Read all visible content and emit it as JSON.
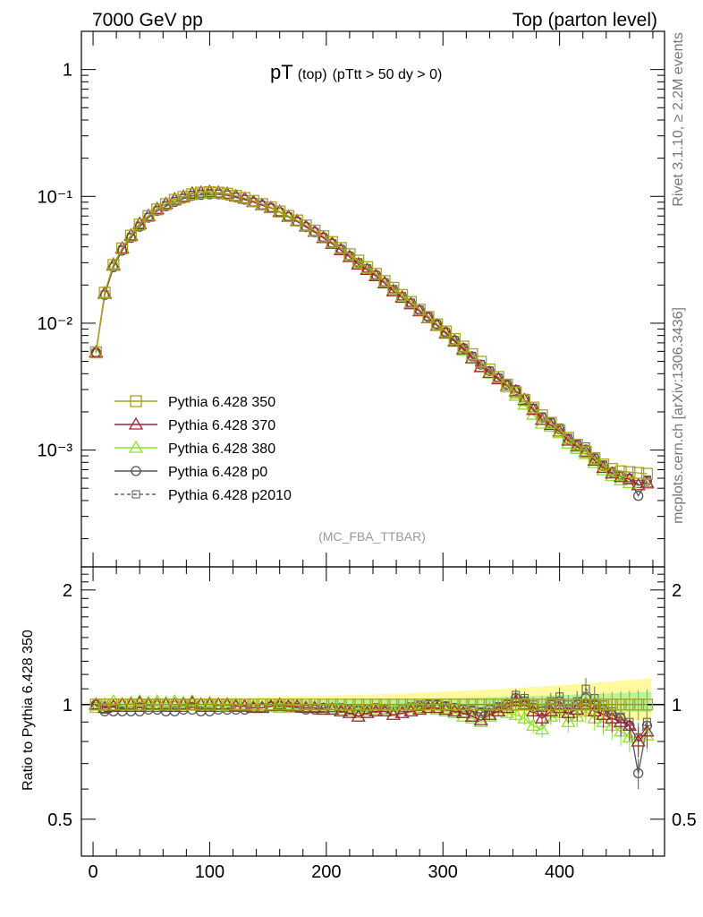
{
  "header": {
    "left": "7000 GeV pp",
    "right": "Top (parton level)"
  },
  "side_labels": {
    "rivet": "Rivet 3.1.10, ≥ 2.2M events",
    "mcplots": "mcplots.cern.ch [arXiv:1306.3436]"
  },
  "plot_title": {
    "main": "pT",
    "sub1": "(top)",
    "sub2": "(pTtt > 50 dy > 0)"
  },
  "watermark": "(MC_FBA_TTBAR)",
  "ratio_ylabel": "Ratio to Pythia 6.428 350",
  "legend": [
    {
      "label": "Pythia 6.428 350",
      "color": "#a5a521",
      "marker": "square",
      "dash": false
    },
    {
      "label": "Pythia 6.428 370",
      "color": "#a5213a",
      "marker": "triangle",
      "dash": false
    },
    {
      "label": "Pythia 6.428 380",
      "color": "#8de22c",
      "marker": "triangle",
      "dash": false
    },
    {
      "label": "Pythia 6.428 p0",
      "color": "#555555",
      "marker": "circle",
      "dash": false
    },
    {
      "label": "Pythia 6.428 p2010",
      "color": "#666666",
      "marker": "square-small",
      "dash": true
    }
  ],
  "chart_data": {
    "type": "line",
    "x_ticks": [
      "0",
      "100",
      "200",
      "300",
      "400"
    ],
    "main_y_ticks": [
      "1",
      "10⁻¹",
      "10⁻²",
      "10⁻³"
    ],
    "ratio_y_ticks": [
      "0.5",
      "1",
      "2"
    ],
    "xlim": [
      -10,
      490
    ],
    "main_ylog": true,
    "main_ylim": [
      0.00012,
      2.0
    ],
    "ratio_ylim": [
      0.4,
      2.3
    ],
    "x": [
      2.5,
      10,
      17.5,
      25,
      32.5,
      40,
      47.5,
      55,
      62.5,
      70,
      77.5,
      85,
      92.5,
      100,
      107.5,
      115,
      122.5,
      130,
      137.5,
      145,
      152.5,
      160,
      167.5,
      175,
      182.5,
      190,
      197.5,
      205,
      212.5,
      220,
      227.5,
      235,
      242.5,
      250,
      257.5,
      265,
      272.5,
      280,
      287.5,
      295,
      302.5,
      310,
      317.5,
      325,
      332.5,
      340,
      347.5,
      355,
      362.5,
      370,
      377.5,
      385,
      392.5,
      400,
      407.5,
      415,
      422.5,
      430,
      437.5,
      445,
      452.5,
      460,
      467.5,
      475
    ],
    "series": [
      {
        "name": "Pythia 6.428 350",
        "values": [
          0.0059,
          0.0174,
          0.0288,
          0.0389,
          0.049,
          0.06,
          0.07,
          0.079,
          0.087,
          0.094,
          0.099,
          0.104,
          0.107,
          0.108,
          0.107,
          0.105,
          0.101,
          0.097,
          0.092,
          0.087,
          0.082,
          0.076,
          0.07,
          0.0646,
          0.059,
          0.0537,
          0.0485,
          0.0436,
          0.0392,
          0.035,
          0.0312,
          0.0277,
          0.0245,
          0.0215,
          0.019,
          0.0167,
          0.0147,
          0.0128,
          0.0112,
          0.0098,
          0.0086,
          0.0075,
          0.00655,
          0.0057,
          0.00497,
          0.00432,
          0.00377,
          0.00328,
          0.00285,
          0.00248,
          0.00216,
          0.00188,
          0.00164,
          0.00143,
          0.00125,
          0.0011,
          0.00097,
          0.00086,
          0.00077,
          0.00071,
          0.00068,
          0.00067,
          0.00066,
          0.00065
        ]
      },
      {
        "name": "Pythia 6.428 370",
        "ratio": [
          1.0,
          0.98,
          0.99,
          1.0,
          1.0,
          1.01,
          1.0,
          1.0,
          1.0,
          1.0,
          1.0,
          1.01,
          1.0,
          1.0,
          1.0,
          1.0,
          0.99,
          0.99,
          0.98,
          0.98,
          0.99,
          1.0,
          0.99,
          0.99,
          0.98,
          0.98,
          0.97,
          0.97,
          0.96,
          0.95,
          0.93,
          0.95,
          0.96,
          0.96,
          0.94,
          0.95,
          0.96,
          0.97,
          0.98,
          0.98,
          0.97,
          0.96,
          0.95,
          0.93,
          0.91,
          0.94,
          0.96,
          0.98,
          1.02,
          1.0,
          0.96,
          0.92,
          0.96,
          0.98,
          0.95,
          0.97,
          1.0,
          0.96,
          0.94,
          0.92,
          0.9,
          0.88,
          0.8,
          0.85
        ]
      },
      {
        "name": "Pythia 6.428 380",
        "ratio": [
          0.98,
          1.0,
          1.02,
          1.0,
          1.01,
          1.02,
          1.01,
          1.02,
          1.01,
          1.02,
          1.01,
          1.02,
          1.0,
          1.01,
          1.0,
          0.99,
          1.0,
          0.99,
          0.99,
          0.98,
          0.99,
          0.98,
          0.98,
          0.99,
          0.98,
          0.98,
          0.97,
          0.98,
          0.97,
          0.96,
          0.95,
          0.96,
          0.97,
          0.97,
          0.96,
          0.97,
          0.98,
          0.98,
          0.98,
          0.97,
          0.96,
          0.95,
          0.93,
          0.92,
          0.9,
          0.93,
          0.96,
          0.95,
          0.94,
          0.92,
          0.88,
          0.86,
          0.93,
          0.95,
          0.9,
          0.93,
          0.96,
          0.92,
          0.9,
          0.88,
          0.85,
          0.82,
          0.8,
          0.83
        ]
      },
      {
        "name": "Pythia 6.428 p0",
        "ratio": [
          1.0,
          0.96,
          0.96,
          0.96,
          0.96,
          0.96,
          0.97,
          0.97,
          0.96,
          0.96,
          0.97,
          0.97,
          0.96,
          0.96,
          0.97,
          0.97,
          0.97,
          0.97,
          0.98,
          0.98,
          0.99,
          0.99,
          0.98,
          0.98,
          0.97,
          0.97,
          0.98,
          0.98,
          0.98,
          0.97,
          0.96,
          0.97,
          0.98,
          0.97,
          0.96,
          0.97,
          0.98,
          0.99,
          1.0,
          1.0,
          0.99,
          0.98,
          0.97,
          0.96,
          0.95,
          0.97,
          0.98,
          1.0,
          1.04,
          1.02,
          0.98,
          0.96,
          1.0,
          1.02,
          0.97,
          1.0,
          1.04,
          1.0,
          0.97,
          0.94,
          0.92,
          0.88,
          0.66,
          0.88
        ]
      },
      {
        "name": "Pythia 6.428 p2010",
        "ratio": [
          0.99,
          0.97,
          0.98,
          0.98,
          0.98,
          0.98,
          0.98,
          0.98,
          0.98,
          0.98,
          0.98,
          0.99,
          0.98,
          0.98,
          0.98,
          0.98,
          0.98,
          0.98,
          0.98,
          0.98,
          0.99,
          0.99,
          0.99,
          0.98,
          0.98,
          0.98,
          0.98,
          0.98,
          0.98,
          0.97,
          0.97,
          0.98,
          0.98,
          0.98,
          0.98,
          0.98,
          0.99,
          1.0,
          1.01,
          1.0,
          0.99,
          0.98,
          0.98,
          0.97,
          0.96,
          0.98,
          0.99,
          1.01,
          1.06,
          1.04,
          1.0,
          0.98,
          1.02,
          1.05,
          1.0,
          1.02,
          1.1,
          1.04,
          1.0,
          0.96,
          0.93,
          0.9,
          0.82,
          0.9
        ]
      }
    ],
    "band_350": {
      "lo": 0.96,
      "hi": 1.04,
      "hi_end": 1.17,
      "color": "#fff9a0"
    },
    "band_380": {
      "lo": 0.98,
      "hi": 1.02,
      "hi_end": 1.08,
      "color": "#b4f5a0"
    }
  }
}
